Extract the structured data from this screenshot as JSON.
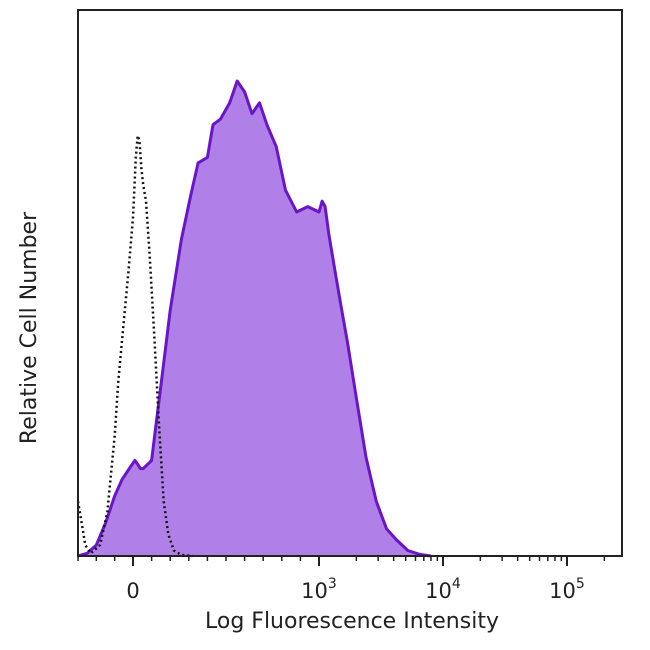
{
  "chart_data": {
    "type": "area",
    "title": "",
    "xlabel": "Log Fluorescence Intensity",
    "ylabel": "Relative Cell Number",
    "x_scale": "biexponential",
    "xlim": [
      -300,
      200000
    ],
    "ylim": [
      0,
      100
    ],
    "legend": "none",
    "grid": false,
    "x_ticks": [
      {
        "value": 0,
        "base": "0",
        "exp": ""
      },
      {
        "value": 1000,
        "base": "10",
        "exp": "3"
      },
      {
        "value": 10000,
        "base": "10",
        "exp": "4"
      },
      {
        "value": 100000,
        "base": "10",
        "exp": "5"
      }
    ],
    "series": [
      {
        "style": "dotted-outline",
        "color": "#111111",
        "points": [
          [
            -300,
            10
          ],
          [
            -280,
            6
          ],
          [
            -260,
            2
          ],
          [
            -230,
            0.5
          ],
          [
            -180,
            2
          ],
          [
            -140,
            8
          ],
          [
            -100,
            22
          ],
          [
            -80,
            32
          ],
          [
            -50,
            43
          ],
          [
            -25,
            52
          ],
          [
            0,
            62
          ],
          [
            15,
            73
          ],
          [
            25,
            77
          ],
          [
            35,
            76
          ],
          [
            45,
            71
          ],
          [
            55,
            68
          ],
          [
            70,
            65
          ],
          [
            90,
            55
          ],
          [
            115,
            40
          ],
          [
            140,
            24
          ],
          [
            165,
            10
          ],
          [
            190,
            4
          ],
          [
            220,
            1
          ],
          [
            260,
            0.2
          ],
          [
            320,
            0
          ]
        ]
      },
      {
        "style": "filled",
        "color": "#b07fe8",
        "stroke": "#6a16c8",
        "points": [
          [
            -300,
            0
          ],
          [
            -250,
            0.5
          ],
          [
            -200,
            2
          ],
          [
            -150,
            6
          ],
          [
            -100,
            11
          ],
          [
            -60,
            14
          ],
          [
            -20,
            16
          ],
          [
            10,
            17.5
          ],
          [
            25,
            16.8
          ],
          [
            40,
            16
          ],
          [
            55,
            16
          ],
          [
            70,
            16.5
          ],
          [
            85,
            17
          ],
          [
            100,
            17.5
          ],
          [
            120,
            23
          ],
          [
            160,
            34
          ],
          [
            200,
            45
          ],
          [
            260,
            58
          ],
          [
            310,
            66
          ],
          [
            350,
            72
          ],
          [
            400,
            73
          ],
          [
            430,
            79
          ],
          [
            470,
            80
          ],
          [
            520,
            83
          ],
          [
            560,
            87
          ],
          [
            600,
            85
          ],
          [
            640,
            81
          ],
          [
            680,
            83
          ],
          [
            720,
            79
          ],
          [
            770,
            75
          ],
          [
            820,
            67
          ],
          [
            880,
            63
          ],
          [
            940,
            64
          ],
          [
            1000,
            63
          ],
          [
            1060,
            65
          ],
          [
            1120,
            64
          ],
          [
            1200,
            59
          ],
          [
            1350,
            52
          ],
          [
            1500,
            46
          ],
          [
            1700,
            39
          ],
          [
            2000,
            29
          ],
          [
            2400,
            18
          ],
          [
            2900,
            10
          ],
          [
            3500,
            5
          ],
          [
            4200,
            3
          ],
          [
            5200,
            1
          ],
          [
            6500,
            0.3
          ],
          [
            8000,
            0
          ]
        ]
      }
    ]
  }
}
